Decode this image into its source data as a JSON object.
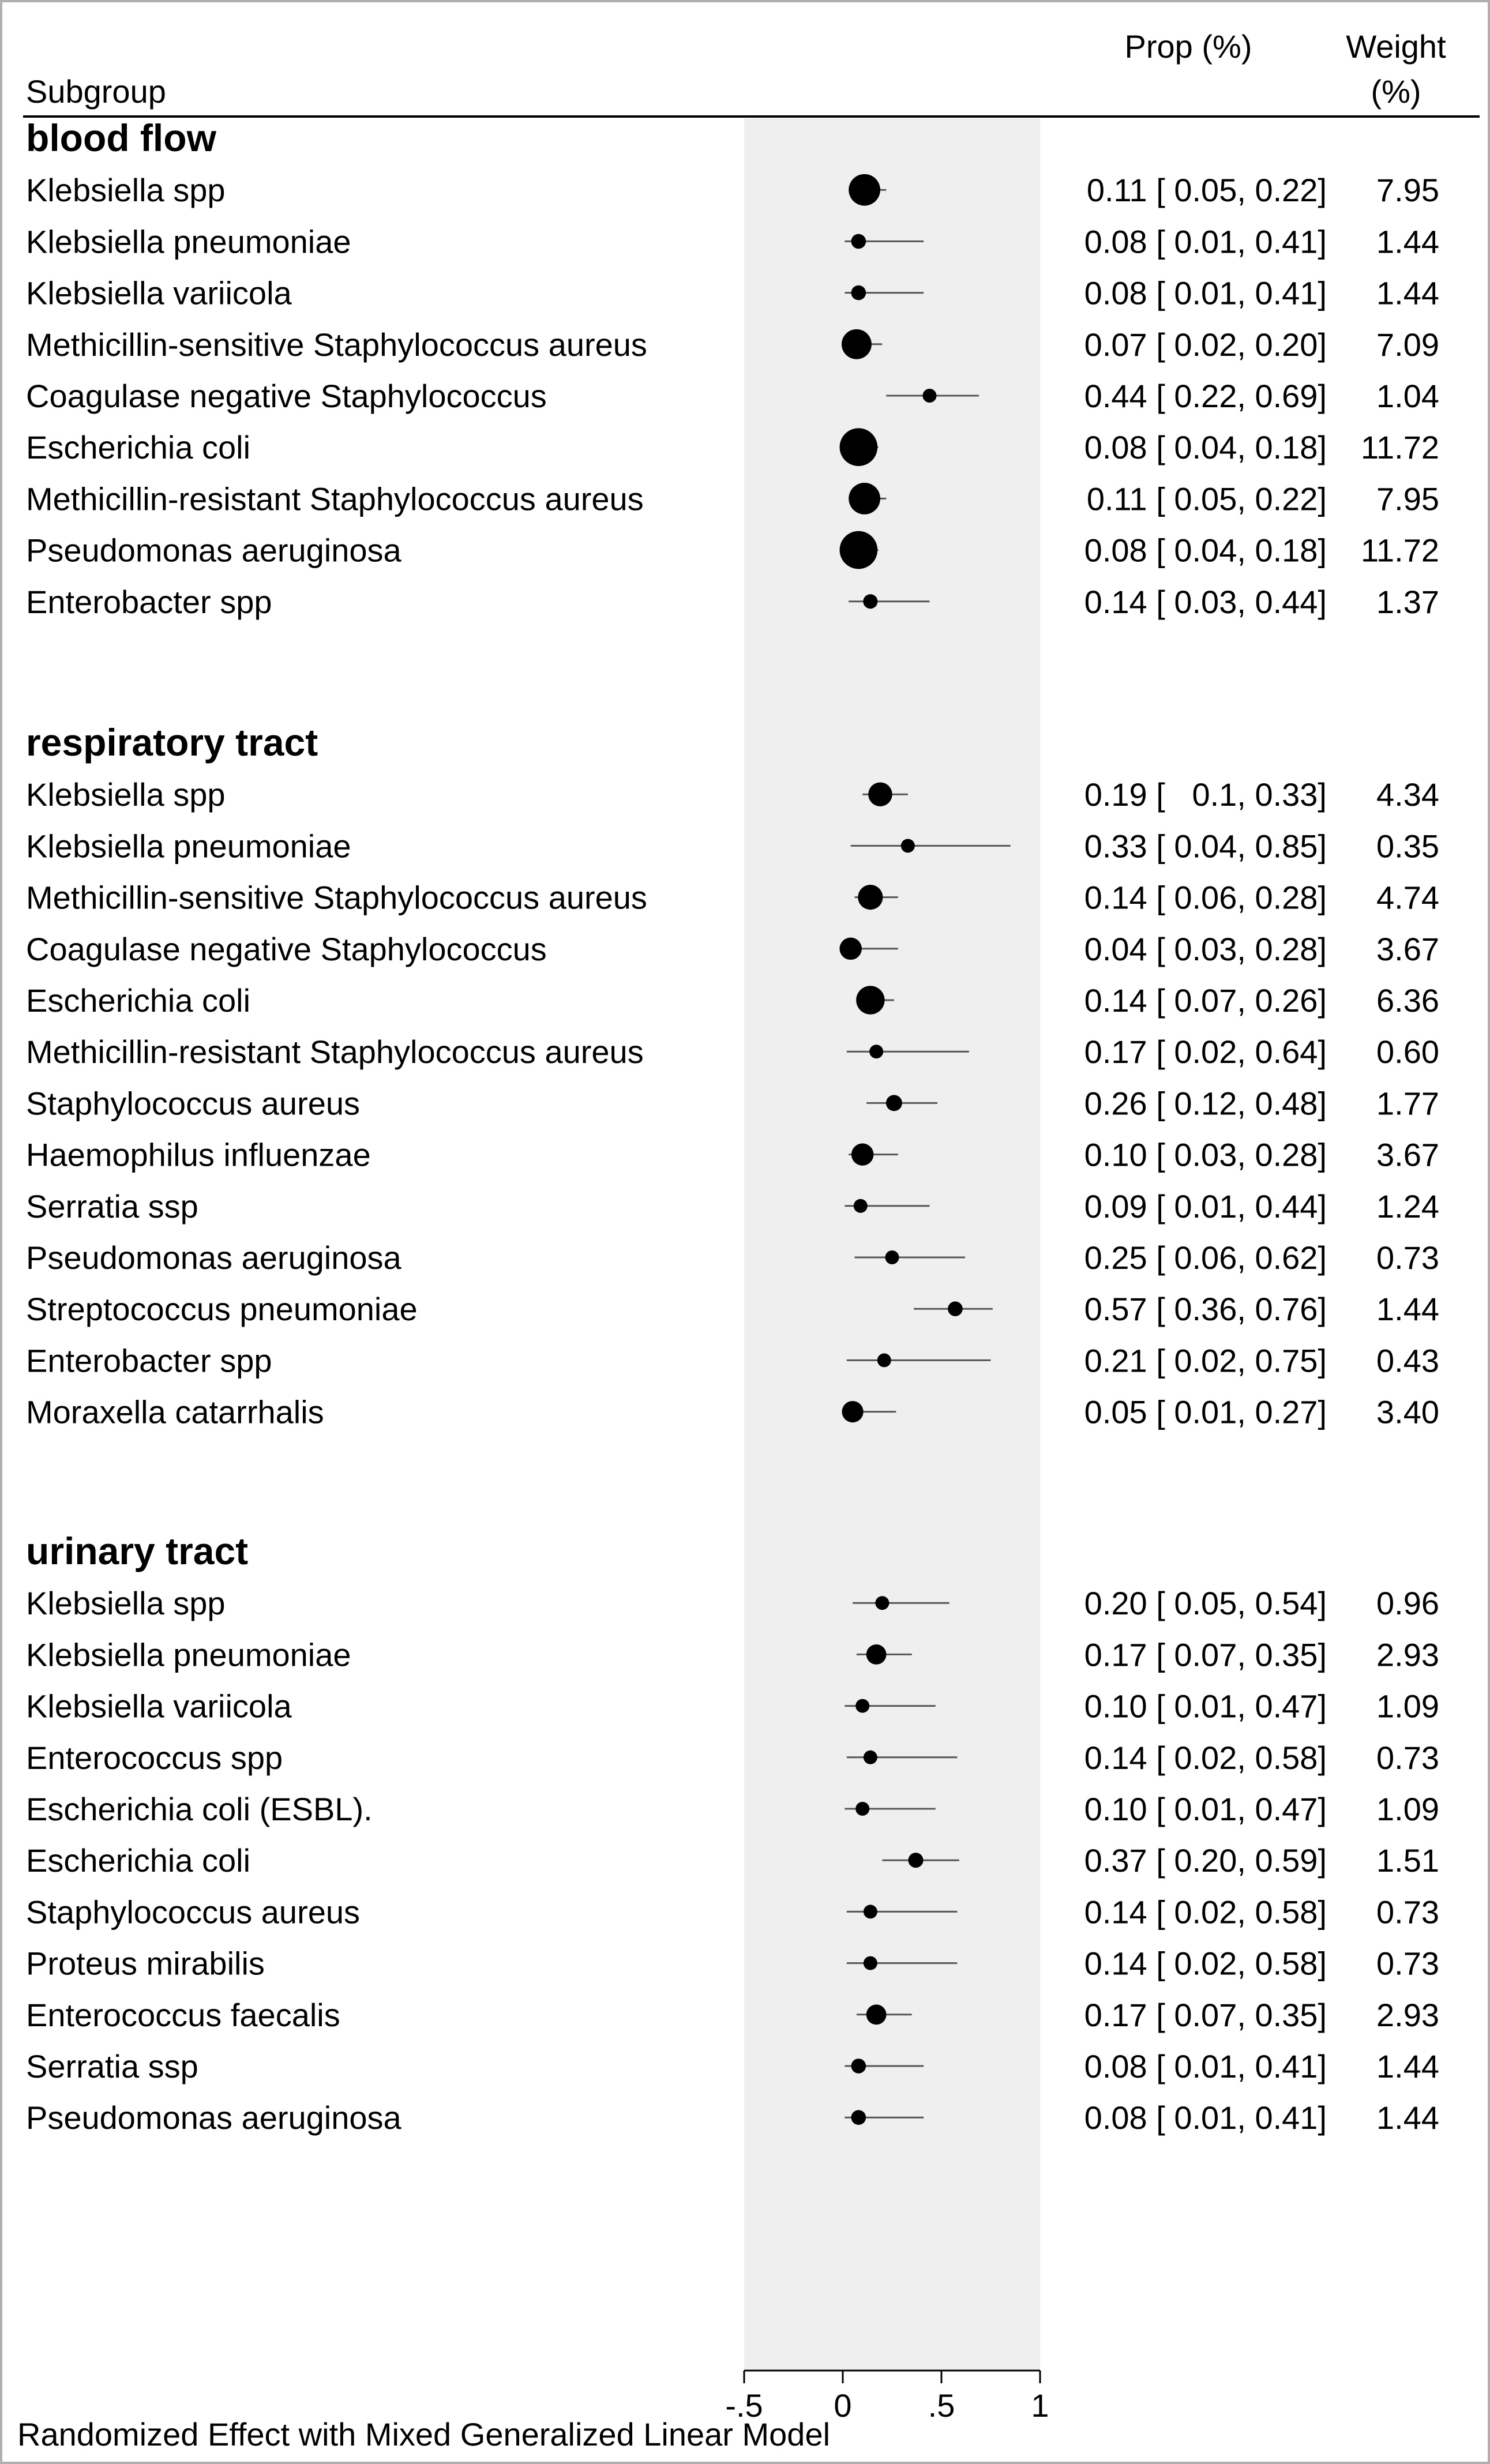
{
  "header": {
    "subgroup_label": "Subgroup",
    "prop_label": "Prop (%)",
    "weight_label_line1": "Weight",
    "weight_label_line2": "(%)"
  },
  "footer": {
    "caption": "Randomized Effect with Mixed Generalized Linear Model"
  },
  "colors": {
    "background": "#ffffff",
    "panel": "#efefef",
    "marker": "#000000",
    "ci_line": "#555555",
    "text": "#000000"
  },
  "chart_data": {
    "type": "forest",
    "xlim": [
      -0.5,
      1
    ],
    "x_ticks": [
      -0.5,
      0,
      0.5,
      1
    ],
    "x_tick_labels": [
      "-.5",
      "0",
      ".5",
      "1"
    ],
    "groups": [
      {
        "name": "blood flow",
        "rows": [
          {
            "label": "Klebsiella spp",
            "est": 0.11,
            "lo": 0.05,
            "hi": 0.22,
            "ci_text": "0.11 [ 0.05, 0.22]",
            "weight": 7.95,
            "weight_text": "7.95"
          },
          {
            "label": "Klebsiella pneumoniae",
            "est": 0.08,
            "lo": 0.01,
            "hi": 0.41,
            "ci_text": "0.08 [ 0.01, 0.41]",
            "weight": 1.44,
            "weight_text": "1.44"
          },
          {
            "label": "Klebsiella variicola",
            "est": 0.08,
            "lo": 0.01,
            "hi": 0.41,
            "ci_text": "0.08 [ 0.01, 0.41]",
            "weight": 1.44,
            "weight_text": "1.44"
          },
          {
            "label": "Methicillin-sensitive Staphylococcus aureus",
            "est": 0.07,
            "lo": 0.02,
            "hi": 0.2,
            "ci_text": "0.07 [ 0.02, 0.20]",
            "weight": 7.09,
            "weight_text": "7.09"
          },
          {
            "label": "Coagulase negative Staphylococcus",
            "est": 0.44,
            "lo": 0.22,
            "hi": 0.69,
            "ci_text": "0.44 [ 0.22, 0.69]",
            "weight": 1.04,
            "weight_text": "1.04"
          },
          {
            "label": "Escherichia coli",
            "est": 0.08,
            "lo": 0.04,
            "hi": 0.18,
            "ci_text": "0.08 [ 0.04, 0.18]",
            "weight": 11.72,
            "weight_text": "11.72"
          },
          {
            "label": "Methicillin-resistant Staphylococcus aureus",
            "est": 0.11,
            "lo": 0.05,
            "hi": 0.22,
            "ci_text": "0.11 [ 0.05, 0.22]",
            "weight": 7.95,
            "weight_text": "7.95"
          },
          {
            "label": "Pseudomonas aeruginosa",
            "est": 0.08,
            "lo": 0.04,
            "hi": 0.18,
            "ci_text": "0.08 [ 0.04, 0.18]",
            "weight": 11.72,
            "weight_text": "11.72"
          },
          {
            "label": "Enterobacter spp",
            "est": 0.14,
            "lo": 0.03,
            "hi": 0.44,
            "ci_text": "0.14 [ 0.03, 0.44]",
            "weight": 1.37,
            "weight_text": "1.37"
          }
        ]
      },
      {
        "name": "respiratory tract",
        "rows": [
          {
            "label": "Klebsiella spp",
            "est": 0.19,
            "lo": 0.1,
            "hi": 0.33,
            "ci_text": "0.19 [   0.1, 0.33]",
            "weight": 4.34,
            "weight_text": "4.34"
          },
          {
            "label": "Klebsiella pneumoniae",
            "est": 0.33,
            "lo": 0.04,
            "hi": 0.85,
            "ci_text": "0.33 [ 0.04, 0.85]",
            "weight": 0.35,
            "weight_text": "0.35"
          },
          {
            "label": "Methicillin-sensitive Staphylococcus aureus",
            "est": 0.14,
            "lo": 0.06,
            "hi": 0.28,
            "ci_text": "0.14 [ 0.06, 0.28]",
            "weight": 4.74,
            "weight_text": "4.74"
          },
          {
            "label": "Coagulase negative Staphylococcus",
            "est": 0.04,
            "lo": 0.03,
            "hi": 0.28,
            "ci_text": "0.04 [ 0.03, 0.28]",
            "weight": 3.67,
            "weight_text": "3.67"
          },
          {
            "label": "Escherichia coli",
            "est": 0.14,
            "lo": 0.07,
            "hi": 0.26,
            "ci_text": "0.14 [ 0.07, 0.26]",
            "weight": 6.36,
            "weight_text": "6.36"
          },
          {
            "label": "Methicillin-resistant Staphylococcus aureus",
            "est": 0.17,
            "lo": 0.02,
            "hi": 0.64,
            "ci_text": "0.17 [ 0.02, 0.64]",
            "weight": 0.6,
            "weight_text": "0.60"
          },
          {
            "label": "Staphylococcus aureus",
            "est": 0.26,
            "lo": 0.12,
            "hi": 0.48,
            "ci_text": "0.26 [ 0.12, 0.48]",
            "weight": 1.77,
            "weight_text": "1.77"
          },
          {
            "label": "Haemophilus influenzae",
            "est": 0.1,
            "lo": 0.03,
            "hi": 0.28,
            "ci_text": "0.10 [ 0.03, 0.28]",
            "weight": 3.67,
            "weight_text": "3.67"
          },
          {
            "label": "Serratia ssp",
            "est": 0.09,
            "lo": 0.01,
            "hi": 0.44,
            "ci_text": "0.09 [ 0.01, 0.44]",
            "weight": 1.24,
            "weight_text": "1.24"
          },
          {
            "label": "Pseudomonas aeruginosa",
            "est": 0.25,
            "lo": 0.06,
            "hi": 0.62,
            "ci_text": "0.25 [ 0.06, 0.62]",
            "weight": 0.73,
            "weight_text": "0.73"
          },
          {
            "label": "Streptococcus pneumoniae",
            "est": 0.57,
            "lo": 0.36,
            "hi": 0.76,
            "ci_text": "0.57 [ 0.36, 0.76]",
            "weight": 1.44,
            "weight_text": "1.44"
          },
          {
            "label": "Enterobacter spp",
            "est": 0.21,
            "lo": 0.02,
            "hi": 0.75,
            "ci_text": "0.21 [ 0.02, 0.75]",
            "weight": 0.43,
            "weight_text": "0.43"
          },
          {
            "label": "Moraxella catarrhalis",
            "est": 0.05,
            "lo": 0.01,
            "hi": 0.27,
            "ci_text": "0.05 [ 0.01, 0.27]",
            "weight": 3.4,
            "weight_text": "3.40"
          }
        ]
      },
      {
        "name": "urinary tract",
        "rows": [
          {
            "label": "Klebsiella spp",
            "est": 0.2,
            "lo": 0.05,
            "hi": 0.54,
            "ci_text": "0.20 [ 0.05, 0.54]",
            "weight": 0.96,
            "weight_text": "0.96"
          },
          {
            "label": "Klebsiella pneumoniae",
            "est": 0.17,
            "lo": 0.07,
            "hi": 0.35,
            "ci_text": "0.17 [ 0.07, 0.35]",
            "weight": 2.93,
            "weight_text": "2.93"
          },
          {
            "label": "Klebsiella variicola",
            "est": 0.1,
            "lo": 0.01,
            "hi": 0.47,
            "ci_text": "0.10 [ 0.01, 0.47]",
            "weight": 1.09,
            "weight_text": "1.09"
          },
          {
            "label": "Enterococcus spp",
            "est": 0.14,
            "lo": 0.02,
            "hi": 0.58,
            "ci_text": "0.14 [ 0.02, 0.58]",
            "weight": 0.73,
            "weight_text": "0.73"
          },
          {
            "label": "Escherichia coli (ESBL).",
            "est": 0.1,
            "lo": 0.01,
            "hi": 0.47,
            "ci_text": "0.10 [ 0.01, 0.47]",
            "weight": 1.09,
            "weight_text": "1.09"
          },
          {
            "label": "Escherichia coli",
            "est": 0.37,
            "lo": 0.2,
            "hi": 0.59,
            "ci_text": "0.37 [ 0.20, 0.59]",
            "weight": 1.51,
            "weight_text": "1.51"
          },
          {
            "label": "Staphylococcus aureus",
            "est": 0.14,
            "lo": 0.02,
            "hi": 0.58,
            "ci_text": "0.14 [ 0.02, 0.58]",
            "weight": 0.73,
            "weight_text": "0.73"
          },
          {
            "label": "Proteus mirabilis",
            "est": 0.14,
            "lo": 0.02,
            "hi": 0.58,
            "ci_text": "0.14 [ 0.02, 0.58]",
            "weight": 0.73,
            "weight_text": "0.73"
          },
          {
            "label": "Enterococcus faecalis",
            "est": 0.17,
            "lo": 0.07,
            "hi": 0.35,
            "ci_text": "0.17 [ 0.07, 0.35]",
            "weight": 2.93,
            "weight_text": "2.93"
          },
          {
            "label": "Serratia ssp",
            "est": 0.08,
            "lo": 0.01,
            "hi": 0.41,
            "ci_text": "0.08 [ 0.01, 0.41]",
            "weight": 1.44,
            "weight_text": "1.44"
          },
          {
            "label": "Pseudomonas aeruginosa",
            "est": 0.08,
            "lo": 0.01,
            "hi": 0.41,
            "ci_text": "0.08 [ 0.01, 0.41]",
            "weight": 1.44,
            "weight_text": "1.44"
          }
        ]
      }
    ]
  }
}
